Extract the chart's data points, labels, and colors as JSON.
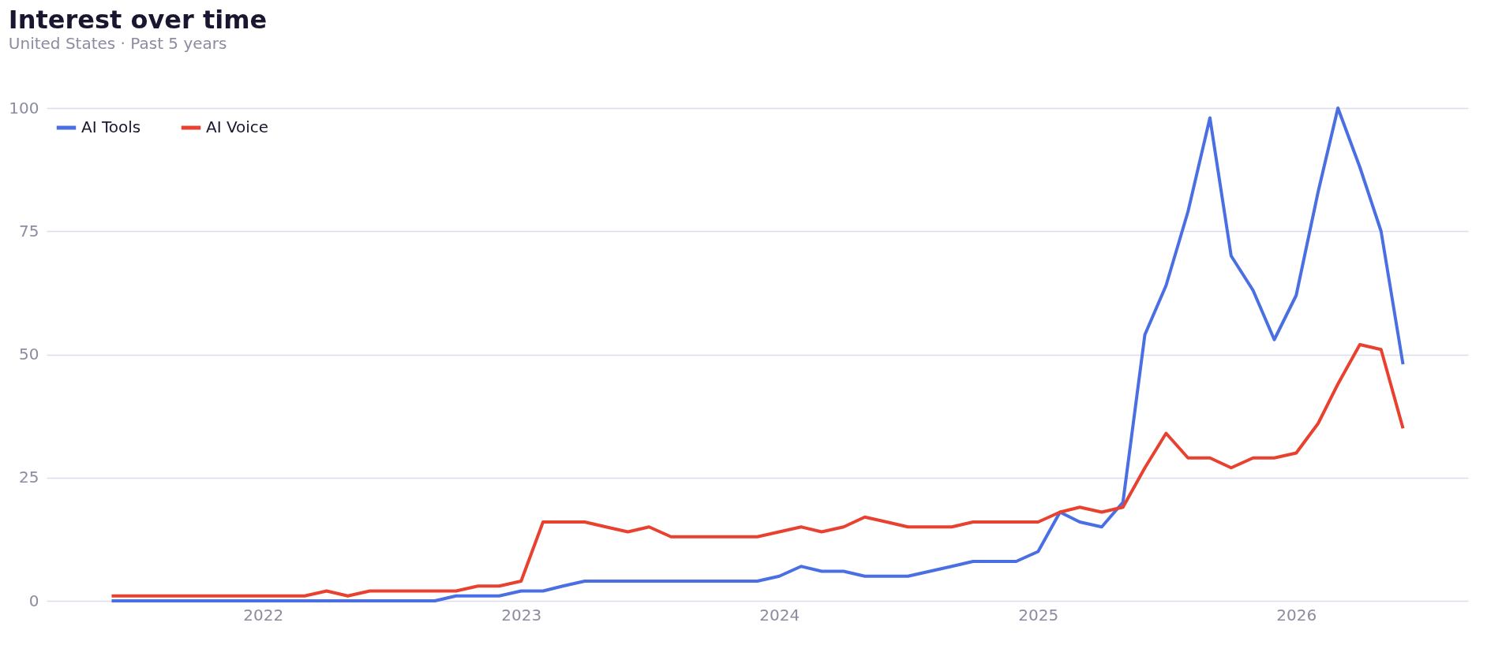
{
  "chart_data": {
    "type": "line",
    "title": "Interest over time",
    "subtitle": "United States  ·  Past 5 years",
    "x": [
      "2021-06",
      "2021-07",
      "2021-08",
      "2021-09",
      "2021-10",
      "2021-11",
      "2021-12",
      "2022-01",
      "2022-02",
      "2022-03",
      "2022-04",
      "2022-05",
      "2022-06",
      "2022-07",
      "2022-08",
      "2022-09",
      "2022-10",
      "2022-11",
      "2022-12",
      "2023-01",
      "2023-02",
      "2023-03",
      "2023-04",
      "2023-05",
      "2023-06",
      "2023-07",
      "2023-08",
      "2023-09",
      "2023-10",
      "2023-11",
      "2023-12",
      "2024-01",
      "2024-02",
      "2024-03",
      "2024-04",
      "2024-05",
      "2024-06",
      "2024-07",
      "2024-08",
      "2024-09",
      "2024-10",
      "2024-11",
      "2024-12",
      "2025-01",
      "2025-02",
      "2025-03",
      "2025-04",
      "2025-05",
      "2025-06",
      "2025-07",
      "2025-08",
      "2025-09",
      "2025-10",
      "2025-11",
      "2025-12",
      "2026-01",
      "2026-02",
      "2026-03",
      "2026-04",
      "2026-05",
      "2026-06"
    ],
    "series": [
      {
        "name": "AI Tools",
        "color": "#4a6fe3",
        "values": [
          0,
          0,
          0,
          0,
          0,
          0,
          0,
          0,
          0,
          0,
          0,
          0,
          0,
          0,
          0,
          0,
          1,
          1,
          1,
          2,
          2,
          3,
          4,
          4,
          4,
          4,
          4,
          4,
          4,
          4,
          4,
          5,
          7,
          6,
          6,
          5,
          5,
          5,
          6,
          7,
          8,
          8,
          8,
          10,
          18,
          16,
          15,
          20,
          54,
          64,
          79,
          98,
          70,
          63,
          53,
          62,
          83,
          100,
          88,
          75,
          48
        ]
      },
      {
        "name": "AI Voice",
        "color": "#e8412f",
        "values": [
          1,
          1,
          1,
          1,
          1,
          1,
          1,
          1,
          1,
          1,
          2,
          1,
          2,
          2,
          2,
          2,
          2,
          3,
          3,
          4,
          16,
          16,
          16,
          15,
          14,
          15,
          13,
          13,
          13,
          13,
          13,
          14,
          15,
          14,
          15,
          17,
          16,
          15,
          15,
          15,
          16,
          16,
          16,
          16,
          18,
          19,
          18,
          19,
          27,
          34,
          29,
          29,
          27,
          29,
          29,
          30,
          36,
          44,
          52,
          51,
          35
        ]
      }
    ],
    "xlim": [
      "2021-03",
      "2026-09"
    ],
    "xticks": [
      {
        "value": "2022",
        "label": "2022"
      },
      {
        "value": "2023",
        "label": "2023"
      },
      {
        "value": "2024",
        "label": "2024"
      },
      {
        "value": "2025",
        "label": "2025"
      },
      {
        "value": "2026",
        "label": "2026"
      }
    ],
    "ylim": [
      0,
      100
    ],
    "yticks": [
      0,
      25,
      50,
      75,
      100
    ],
    "grid": "y",
    "legend": "top left",
    "marker": "none",
    "line_style": "solid"
  }
}
